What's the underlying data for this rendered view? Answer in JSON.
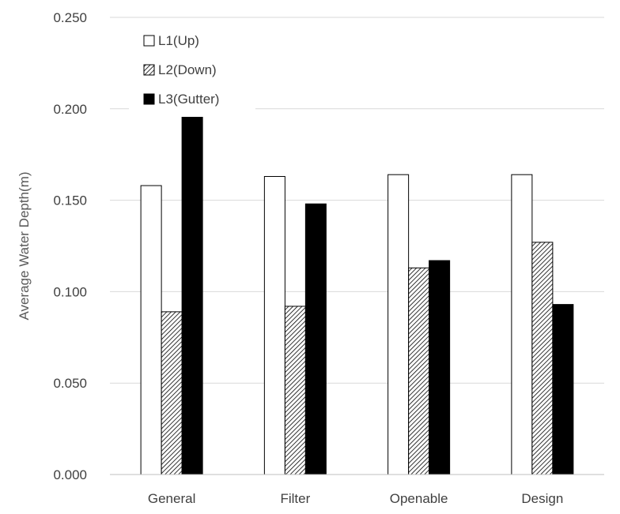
{
  "chart_data": {
    "type": "bar",
    "title": "",
    "xlabel": "",
    "ylabel": "Average Water Depth(m)",
    "categories": [
      "General",
      "Filter",
      "Openable",
      "Design"
    ],
    "series": [
      {
        "name": "L1(Up)",
        "pattern": "white",
        "values": [
          0.158,
          0.163,
          0.164,
          0.164
        ]
      },
      {
        "name": "L2(Down)",
        "pattern": "hatch",
        "values": [
          0.089,
          0.092,
          0.113,
          0.127
        ]
      },
      {
        "name": "L3(Gutter)",
        "pattern": "black",
        "values": [
          0.199,
          0.148,
          0.117,
          0.093
        ]
      }
    ],
    "ylim": [
      0,
      0.25
    ],
    "yticks": [
      "0.000",
      "0.050",
      "0.100",
      "0.150",
      "0.200",
      "0.250"
    ],
    "grid": true,
    "legend_position": "top-left"
  }
}
